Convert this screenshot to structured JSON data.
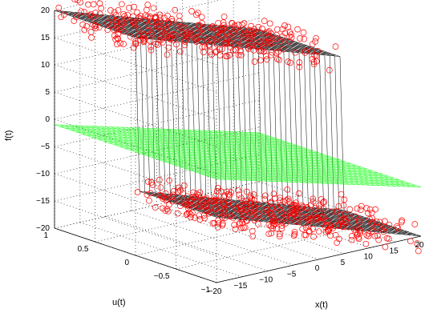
{
  "chart_data": {
    "type": "surface3d",
    "xlabel": "x(t)",
    "ylabel": "u(t)",
    "zlabel": "f(t)",
    "xlim": [
      -20,
      20
    ],
    "ylim": [
      -1,
      1
    ],
    "zlim": [
      -20,
      20
    ],
    "x_ticks": [
      "−20",
      "−15",
      "−10",
      "−5",
      "0",
      "5",
      "10",
      "15",
      "20"
    ],
    "y_ticks": [
      "−1",
      "−0.5",
      "0",
      "0.5",
      "1"
    ],
    "z_ticks": [
      "−20",
      "−15",
      "−10",
      "−5",
      "0",
      "5",
      "10",
      "15",
      "20"
    ],
    "grid": true,
    "series": [
      {
        "kind": "mesh-surface",
        "color": "#000000",
        "description_fn": "f = 20*sign(u) - ramp, step plane"
      },
      {
        "kind": "mesh-surface",
        "color": "#00ff00",
        "description_fn": "f = -0.3*x - 5"
      },
      {
        "kind": "scatter-markers",
        "marker": "circle-open",
        "color": "#ff0000"
      }
    ]
  }
}
